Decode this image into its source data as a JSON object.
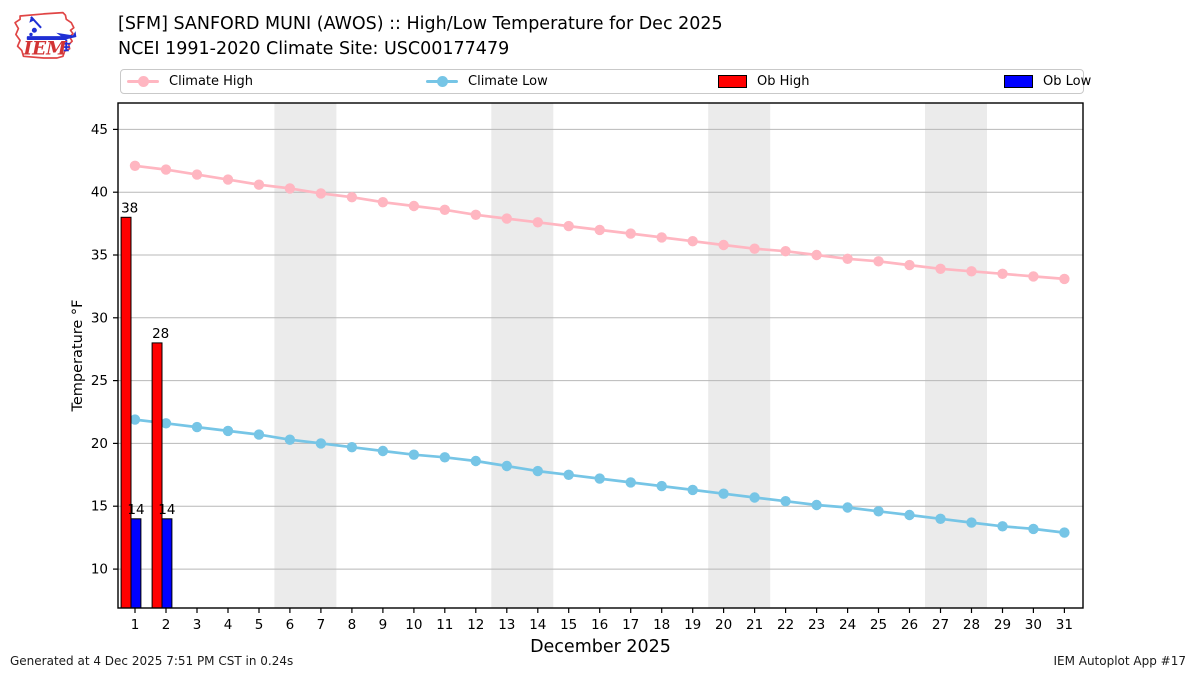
{
  "header": {
    "title": "[SFM] SANFORD MUNI (AWOS) :: High/Low Temperature for Dec 2025",
    "subtitle": "NCEI 1991-2020 Climate Site: USC00177479",
    "logo_text": "IEM"
  },
  "legend": {
    "items": [
      {
        "label": "Climate High",
        "type": "line",
        "color": "#FFB6C1"
      },
      {
        "label": "Climate Low",
        "type": "line",
        "color": "#76C5E6"
      },
      {
        "label": "Ob High",
        "type": "patch",
        "color": "#FF0000"
      },
      {
        "label": "Ob Low",
        "type": "patch",
        "color": "#0000FF"
      }
    ]
  },
  "footer": {
    "left": "Generated at 4 Dec 2025 7:51 PM CST in 0.24s",
    "right": "IEM Autoplot App #17"
  },
  "chart_data": {
    "type": "line+bar",
    "xlabel": "December 2025",
    "ylabel": "Temperature °F",
    "x": [
      1,
      2,
      3,
      4,
      5,
      6,
      7,
      8,
      9,
      10,
      11,
      12,
      13,
      14,
      15,
      16,
      17,
      18,
      19,
      20,
      21,
      22,
      23,
      24,
      25,
      26,
      27,
      28,
      29,
      30,
      31
    ],
    "xlim": [
      0.45,
      31.6
    ],
    "ylim": [
      6.9,
      47.1
    ],
    "yticks": [
      10,
      15,
      20,
      25,
      30,
      35,
      40,
      45
    ],
    "grid": true,
    "grid_color": "#b8b8b8",
    "band_color": "#ebebeb",
    "weekend_bands": [
      [
        5.5,
        7.5
      ],
      [
        12.5,
        14.5
      ],
      [
        19.5,
        21.5
      ],
      [
        26.5,
        28.5
      ]
    ],
    "series": [
      {
        "name": "Climate High",
        "type": "line",
        "color": "#FFB6C1",
        "values": [
          42.1,
          41.8,
          41.4,
          41.0,
          40.6,
          40.3,
          39.9,
          39.6,
          39.2,
          38.9,
          38.6,
          38.2,
          37.9,
          37.6,
          37.3,
          37.0,
          36.7,
          36.4,
          36.1,
          35.8,
          35.5,
          35.3,
          35.0,
          34.7,
          34.5,
          34.2,
          33.9,
          33.7,
          33.5,
          33.3,
          33.1
        ]
      },
      {
        "name": "Climate Low",
        "type": "line",
        "color": "#76C5E6",
        "values": [
          21.9,
          21.6,
          21.3,
          21.0,
          20.7,
          20.3,
          20.0,
          19.7,
          19.4,
          19.1,
          18.9,
          18.6,
          18.2,
          17.8,
          17.5,
          17.2,
          16.9,
          16.6,
          16.3,
          16.0,
          15.7,
          15.4,
          15.1,
          14.9,
          14.6,
          14.3,
          14.0,
          13.7,
          13.4,
          13.2,
          12.9
        ]
      },
      {
        "name": "Ob High",
        "type": "bar",
        "color": "#FF0000",
        "days": [
          1,
          2
        ],
        "values": [
          38,
          28
        ],
        "labels": [
          "38",
          "28"
        ]
      },
      {
        "name": "Ob Low",
        "type": "bar",
        "color": "#0000FF",
        "days": [
          1,
          2
        ],
        "values": [
          14,
          14
        ],
        "labels": [
          "14",
          "14"
        ]
      }
    ]
  }
}
